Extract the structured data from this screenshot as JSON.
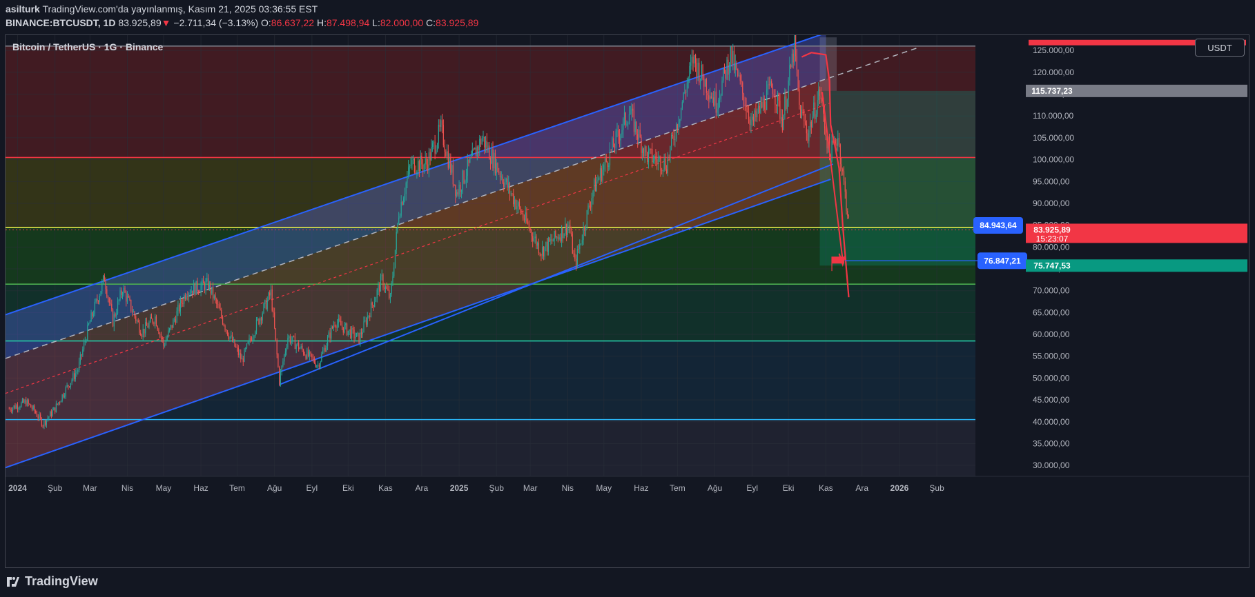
{
  "header": {
    "author": "asilturk",
    "published_text": "TradingView.com'da yayınlanmış, Kasım 21, 2025 03:36:55 EST",
    "symbol": "BINANCE:BTCUSDT, 1D",
    "last_price": "83.925,89",
    "change": "−2.711,34 (−3.13%)",
    "open_label": "O:",
    "open": "86.637,22",
    "high_label": "H:",
    "high": "87.498,94",
    "low_label": "L:",
    "low": "82.000,00",
    "close_label": "C:",
    "close": "83.925,89",
    "change_arrow": "▼"
  },
  "chart_title": "Bitcoin / TetherUS · 1G · Binance",
  "currency_button": "USDT",
  "footer": {
    "brand": "TradingView"
  },
  "colors": {
    "background": "#131722",
    "up": "#26a69a",
    "down": "#ef5350",
    "channel": "#2962ff",
    "annotation": "#f23645"
  },
  "chart_data": {
    "type": "line",
    "title": "Bitcoin / TetherUS · 1G · Binance",
    "ylim": [
      27500,
      128500
    ],
    "yticks": [
      30000,
      35000,
      40000,
      45000,
      50000,
      55000,
      60000,
      65000,
      70000,
      75000,
      80000,
      85000,
      90000,
      95000,
      100000,
      105000,
      110000,
      115000,
      120000,
      125000
    ],
    "ytick_labels": [
      "30.000,00",
      "35.000,00",
      "40.000,00",
      "45.000,00",
      "50.000,00",
      "55.000,00",
      "60.000,00",
      "65.000,00",
      "70.000,00",
      "75.000,00",
      "80.000,00",
      "85.000,00",
      "90.000,00",
      "95.000,00",
      "100.000,00",
      "105.000,00",
      "110.000,00",
      "115.000,00",
      "120.000,00",
      "125.000,00"
    ],
    "xlim": [
      "2023-12-22",
      "2026-03-05"
    ],
    "xticks": [
      {
        "date": "2024-01-01",
        "label": "2024",
        "bold": true
      },
      {
        "date": "2024-02-01",
        "label": "Şub"
      },
      {
        "date": "2024-03-01",
        "label": "Mar"
      },
      {
        "date": "2024-04-01",
        "label": "Nis"
      },
      {
        "date": "2024-05-01",
        "label": "May"
      },
      {
        "date": "2024-06-01",
        "label": "Haz"
      },
      {
        "date": "2024-07-01",
        "label": "Tem"
      },
      {
        "date": "2024-08-01",
        "label": "Ağu"
      },
      {
        "date": "2024-09-01",
        "label": "Eyl"
      },
      {
        "date": "2024-10-01",
        "label": "Eki"
      },
      {
        "date": "2024-11-01",
        "label": "Kas"
      },
      {
        "date": "2024-12-01",
        "label": "Ara"
      },
      {
        "date": "2025-01-01",
        "label": "2025",
        "bold": true
      },
      {
        "date": "2025-02-01",
        "label": "Şub"
      },
      {
        "date": "2025-03-01",
        "label": "Mar"
      },
      {
        "date": "2025-04-01",
        "label": "Nis"
      },
      {
        "date": "2025-05-01",
        "label": "May"
      },
      {
        "date": "2025-06-01",
        "label": "Haz"
      },
      {
        "date": "2025-07-01",
        "label": "Tem"
      },
      {
        "date": "2025-08-01",
        "label": "Ağu"
      },
      {
        "date": "2025-09-01",
        "label": "Eyl"
      },
      {
        "date": "2025-10-01",
        "label": "Eki"
      },
      {
        "date": "2025-11-01",
        "label": "Kas"
      },
      {
        "date": "2025-12-01",
        "label": "Ara"
      },
      {
        "date": "2026-01-01",
        "label": "2026",
        "bold": true
      },
      {
        "date": "2026-02-01",
        "label": "Şub"
      }
    ],
    "series": [
      {
        "points": [
          [
            "2023-12-25",
            43000
          ],
          [
            "2024-01-08",
            44500
          ],
          [
            "2024-01-15",
            42500
          ],
          [
            "2024-01-22",
            39500
          ],
          [
            "2024-02-01",
            43000
          ],
          [
            "2024-02-10",
            47500
          ],
          [
            "2024-02-20",
            52000
          ],
          [
            "2024-02-29",
            62000
          ],
          [
            "2024-03-13",
            73000
          ],
          [
            "2024-03-20",
            63000
          ],
          [
            "2024-03-28",
            70500
          ],
          [
            "2024-04-13",
            60500
          ],
          [
            "2024-04-24",
            64000
          ],
          [
            "2024-05-01",
            57500
          ],
          [
            "2024-05-20",
            70000
          ],
          [
            "2024-06-07",
            71500
          ],
          [
            "2024-06-24",
            60000
          ],
          [
            "2024-07-05",
            54000
          ],
          [
            "2024-07-15",
            61000
          ],
          [
            "2024-07-29",
            69500
          ],
          [
            "2024-08-05",
            49500
          ],
          [
            "2024-08-12",
            59500
          ],
          [
            "2024-09-06",
            53000
          ],
          [
            "2024-09-20",
            63000
          ],
          [
            "2024-10-10",
            59000
          ],
          [
            "2024-10-29",
            72500
          ],
          [
            "2024-11-05",
            68000
          ],
          [
            "2024-11-12",
            88000
          ],
          [
            "2024-11-22",
            99000
          ],
          [
            "2024-12-05",
            99000
          ],
          [
            "2024-12-17",
            107000
          ],
          [
            "2024-12-30",
            92500
          ],
          [
            "2025-01-20",
            105000
          ],
          [
            "2025-02-03",
            97500
          ],
          [
            "2025-02-25",
            86000
          ],
          [
            "2025-03-10",
            79000
          ],
          [
            "2025-04-02",
            85000
          ],
          [
            "2025-04-07",
            76000
          ],
          [
            "2025-04-22",
            93000
          ],
          [
            "2025-05-22",
            111000
          ],
          [
            "2025-06-05",
            101000
          ],
          [
            "2025-06-22",
            99000
          ],
          [
            "2025-07-14",
            123000
          ],
          [
            "2025-08-02",
            113000
          ],
          [
            "2025-08-14",
            124000
          ],
          [
            "2025-09-01",
            108000
          ],
          [
            "2025-09-18",
            117000
          ],
          [
            "2025-09-26",
            109000
          ],
          [
            "2025-10-06",
            126000
          ],
          [
            "2025-10-10",
            112000
          ],
          [
            "2025-10-17",
            106000
          ],
          [
            "2025-10-27",
            115500
          ],
          [
            "2025-11-04",
            101000
          ],
          [
            "2025-11-11",
            105500
          ],
          [
            "2025-11-17",
            92000
          ],
          [
            "2025-11-21",
            83925.89
          ]
        ]
      }
    ],
    "horizontal_levels": [
      {
        "value": 126000,
        "color": "#787b86"
      },
      {
        "value": 100500,
        "color": "#f23645"
      },
      {
        "value": 84500,
        "color": "#e6e94a"
      },
      {
        "value": 71500,
        "color": "#4caf50"
      },
      {
        "value": 58500,
        "color": "#26c6a6"
      },
      {
        "value": 40500,
        "color": "#29b6f6"
      }
    ],
    "channel": {
      "upper": [
        [
          "2023-12-22",
          64500
        ],
        [
          "2025-11-01",
          129000
        ]
      ],
      "middle": [
        [
          "2023-12-22",
          54500
        ],
        [
          "2026-01-15",
          125500
        ]
      ],
      "lower_mid": [
        [
          "2023-12-22",
          46500
        ],
        [
          "2025-11-05",
          113000
        ]
      ],
      "lower": [
        [
          "2023-12-22",
          29500
        ],
        [
          "2025-11-05",
          95500
        ]
      ],
      "support": [
        [
          "2024-08-05",
          48500
        ],
        [
          "2025-11-07",
          99000
        ]
      ]
    },
    "price_labels": [
      {
        "value": 115737.23,
        "label": "115.737,23",
        "bg": "#787b86"
      },
      {
        "value": 84943.64,
        "label": "84.943,64",
        "bg": "#2962ff",
        "outside": true
      },
      {
        "value": 83925.89,
        "label": "83.925,89",
        "bg": "#f23645",
        "sub": "15:23:07"
      },
      {
        "value": 76847.21,
        "label": "76.847,21",
        "bg": "#2962ff",
        "outside": true
      },
      {
        "value": 75747.53,
        "label": "75.747,53",
        "bg": "#089981"
      }
    ]
  }
}
